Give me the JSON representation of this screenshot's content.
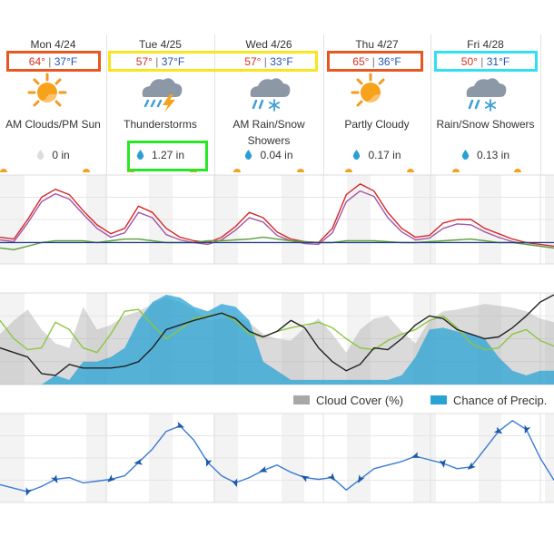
{
  "forecast": {
    "days": [
      {
        "day": "Mon 4/24",
        "high": "64°",
        "low": "37°F",
        "condition": [
          "AM Clouds/PM Sun"
        ],
        "icon": "sun-cloud-icon",
        "precip": "0 in",
        "precip_color": "#dddddd"
      },
      {
        "day": "Tue 4/25",
        "high": "57°",
        "low": "37°F",
        "condition": [
          "Thunderstorms"
        ],
        "icon": "thunderstorm-icon",
        "precip": "1.27 in",
        "precip_color": "#2a9fd6"
      },
      {
        "day": "Wed 4/26",
        "high": "57°",
        "low": "33°F",
        "condition": [
          "AM Rain/Snow",
          "Showers"
        ],
        "icon": "rain-snow-icon",
        "precip": "0.04 in",
        "precip_color": "#2a9fd6"
      },
      {
        "day": "Thu 4/27",
        "high": "65°",
        "low": "36°F",
        "condition": [
          "Partly Cloudy"
        ],
        "icon": "partly-cloudy-icon",
        "precip": "0.17 in",
        "precip_color": "#2a9fd6"
      },
      {
        "day": "Fri 4/28",
        "high": "50°",
        "low": "31°F",
        "condition": [
          "Rain/Snow Showers"
        ],
        "icon": "rain-snow-icon",
        "precip": "0.13 in",
        "precip_color": "#2a9fd6"
      }
    ],
    "highlight_colors": {
      "orange": "#e8571f",
      "yellow": "#f8e51d",
      "green": "#27e827",
      "cyan": "#2ee0f2"
    }
  },
  "legend": {
    "cloud_cover": "Cloud Cover (%)",
    "cloud_cover_color": "#a8a8a8",
    "precip_chance": "Chance of Precip.",
    "precip_chance_color": "#29a3d6"
  },
  "chart_data": [
    {
      "type": "line",
      "x": [
        0,
        3,
        6,
        9,
        12,
        15,
        18,
        21,
        24,
        27,
        30,
        33,
        36,
        39,
        42,
        45,
        48,
        51,
        54,
        57,
        60,
        63,
        66,
        69,
        72,
        75,
        78,
        81,
        84,
        87,
        90,
        93,
        96,
        99,
        102,
        105,
        108,
        111,
        114,
        117,
        120
      ],
      "ylim": [
        0,
        100
      ],
      "grid": true,
      "series": [
        {
          "color": "#d62728",
          "values": [
            30,
            28,
            50,
            75,
            84,
            78,
            60,
            44,
            34,
            40,
            65,
            58,
            40,
            30,
            26,
            24,
            30,
            42,
            58,
            52,
            36,
            28,
            25,
            24,
            40,
            78,
            90,
            82,
            58,
            40,
            30,
            32,
            46,
            50,
            50,
            40,
            34,
            28,
            24,
            22,
            20
          ]
        },
        {
          "color": "#a455a6",
          "values": [
            27,
            25,
            46,
            70,
            79,
            73,
            56,
            40,
            30,
            35,
            58,
            52,
            33,
            27,
            24,
            22,
            27,
            38,
            52,
            47,
            32,
            26,
            23,
            22,
            35,
            70,
            82,
            76,
            52,
            36,
            27,
            29,
            40,
            45,
            44,
            36,
            30,
            25,
            22,
            20,
            18
          ]
        },
        {
          "color": "#5a9e3a",
          "values": [
            18,
            16,
            20,
            24,
            26,
            26,
            26,
            24,
            26,
            28,
            28,
            26,
            24,
            24,
            24,
            26,
            26,
            27,
            28,
            30,
            28,
            26,
            25,
            24,
            24,
            26,
            26,
            26,
            25,
            24,
            24,
            25,
            26,
            27,
            28,
            26,
            24,
            24,
            22,
            20,
            18
          ]
        },
        {
          "color": "#1f3f8c",
          "values": [
            24,
            24,
            24,
            24,
            24,
            24,
            24,
            24,
            24,
            24,
            24,
            24,
            24,
            24,
            24,
            24,
            24,
            24,
            24,
            24,
            24,
            24,
            24,
            24,
            24,
            24,
            24,
            24,
            24,
            24,
            24,
            24,
            24,
            24,
            24,
            24,
            24,
            24,
            24,
            24,
            24
          ]
        }
      ]
    },
    {
      "type": "area",
      "x": [
        0,
        3,
        6,
        9,
        12,
        15,
        18,
        21,
        24,
        27,
        30,
        33,
        36,
        39,
        42,
        45,
        48,
        51,
        54,
        57,
        60,
        63,
        66,
        69,
        72,
        75,
        78,
        81,
        84,
        87,
        90,
        93,
        96,
        99,
        102,
        105,
        108,
        111,
        114,
        117,
        120
      ],
      "ylim": [
        0,
        100
      ],
      "grid": true,
      "legend_position": "bottom-right",
      "series": [
        {
          "name": "Cloud Cover (%)",
          "color": "#a8a8a8",
          "values": [
            55,
            70,
            82,
            60,
            45,
            40,
            85,
            60,
            65,
            75,
            80,
            88,
            95,
            90,
            82,
            70,
            72,
            75,
            68,
            55,
            50,
            48,
            62,
            72,
            55,
            35,
            60,
            72,
            75,
            58,
            45,
            70,
            80,
            82,
            85,
            88,
            86,
            84,
            80,
            72,
            68
          ]
        },
        {
          "name": "Chance of Precip.",
          "color": "#29a3d6",
          "values": [
            0,
            0,
            0,
            0,
            10,
            5,
            25,
            25,
            30,
            40,
            70,
            90,
            98,
            95,
            85,
            80,
            88,
            85,
            70,
            25,
            15,
            5,
            5,
            5,
            5,
            5,
            5,
            5,
            5,
            10,
            30,
            60,
            62,
            58,
            55,
            50,
            30,
            15,
            10,
            15,
            15
          ]
        },
        {
          "color": "#8cc63f",
          "values": [
            70,
            50,
            38,
            40,
            68,
            60,
            40,
            35,
            55,
            80,
            82,
            65,
            50,
            60,
            72,
            75,
            78,
            70,
            55,
            52,
            58,
            62,
            65,
            68,
            62,
            50,
            40,
            38,
            48,
            55,
            60,
            70,
            75,
            62,
            45,
            38,
            40,
            55,
            60,
            48,
            42
          ]
        },
        {
          "color": "#222222",
          "values": [
            40,
            35,
            30,
            12,
            10,
            22,
            18,
            18,
            18,
            20,
            25,
            40,
            60,
            65,
            70,
            74,
            78,
            72,
            58,
            52,
            58,
            70,
            62,
            40,
            25,
            15,
            22,
            40,
            38,
            50,
            65,
            75,
            72,
            60,
            55,
            50,
            52,
            62,
            75,
            90,
            98
          ]
        }
      ]
    },
    {
      "type": "line",
      "x": [
        0,
        3,
        6,
        9,
        12,
        15,
        18,
        21,
        24,
        27,
        30,
        33,
        36,
        39,
        42,
        45,
        48,
        51,
        54,
        57,
        60,
        63,
        66,
        69,
        72,
        75,
        78,
        81,
        84,
        87,
        90,
        93,
        96,
        99,
        102,
        105,
        108,
        111,
        114,
        117,
        120
      ],
      "ylim": [
        0,
        100
      ],
      "grid": true,
      "series": [
        {
          "color": "#3a7bd5",
          "values": [
            20,
            16,
            12,
            18,
            26,
            28,
            22,
            24,
            26,
            30,
            45,
            60,
            80,
            86,
            70,
            45,
            30,
            22,
            28,
            36,
            42,
            34,
            28,
            26,
            28,
            14,
            26,
            38,
            42,
            46,
            52,
            48,
            44,
            38,
            40,
            60,
            80,
            92,
            82,
            50,
            25
          ]
        }
      ]
    }
  ]
}
